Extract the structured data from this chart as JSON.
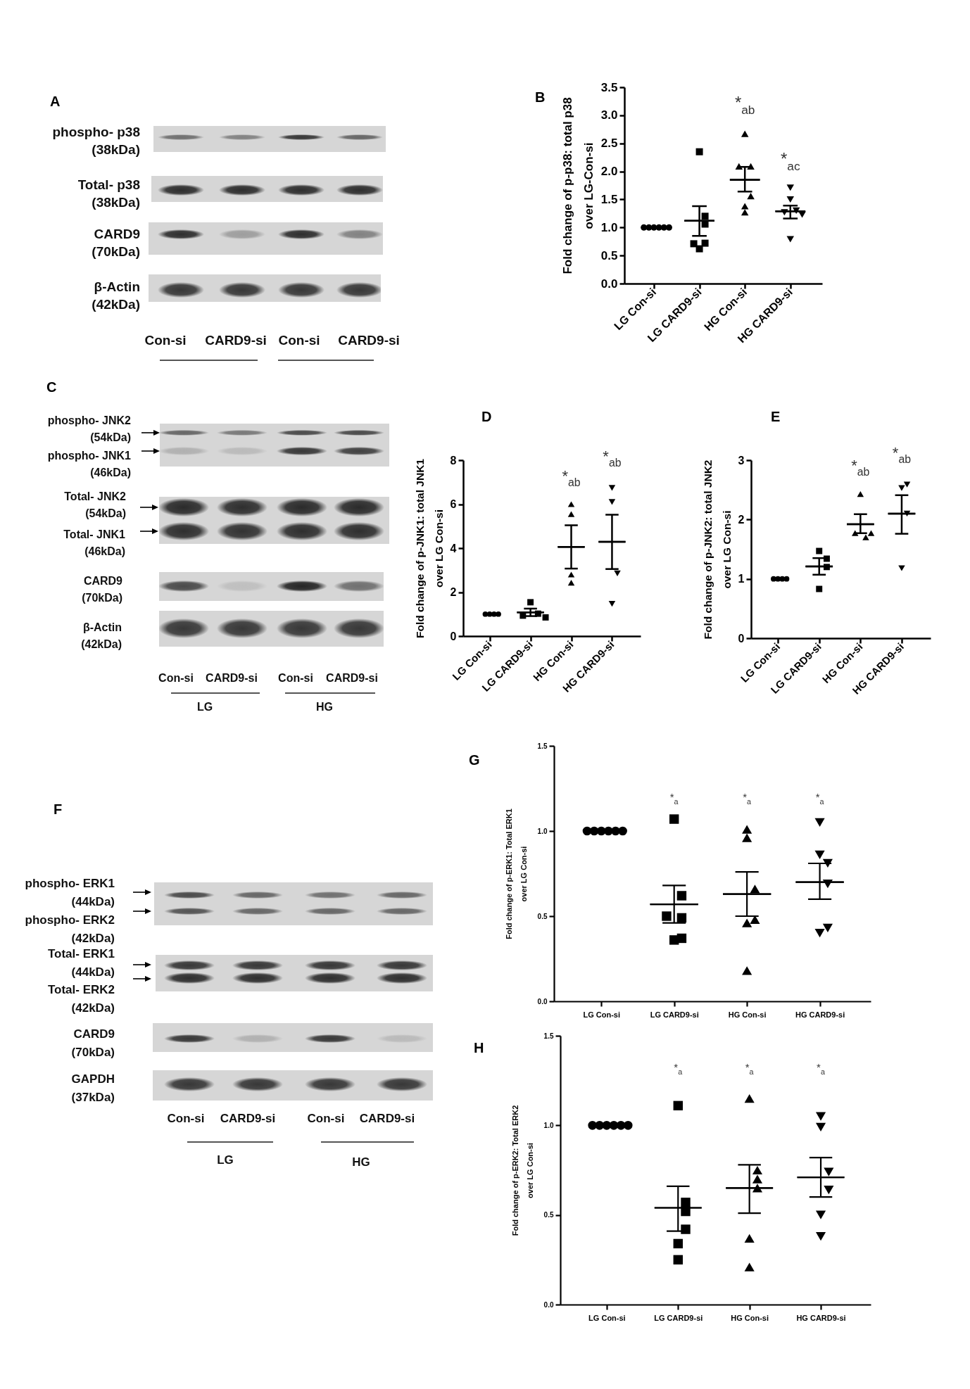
{
  "chart_data": [
    {
      "type": "other",
      "title": "A",
      "annotations": [
        "phospho- p38\n(38kDa)",
        "Total- p38\n(38kDa)",
        "CARD9\n(70kDa)",
        "β-Actin\n(42kDa)",
        "Con-si",
        "CARD9-si",
        "Con-si",
        "CARD9-si"
      ]
    },
    {
      "type": "scatter",
      "title": "B",
      "ylabel": "Fold change of p-p38: total p38\nover LG-Con-si",
      "categories": [
        "LG Con-si",
        "LG CARD9-si",
        "HG Con-si",
        "HG CARD9-si"
      ],
      "ylim": [
        0,
        3.5
      ],
      "yticks": [
        {
          "value": 0,
          "label": "0.0"
        },
        0.5,
        {
          "value": 1,
          "label": "1.0"
        },
        1.5,
        {
          "value": 2,
          "label": "2.0"
        },
        2.5,
        {
          "value": 3,
          "label": "3.0"
        },
        3.5
      ],
      "series": [
        {
          "marker": "circle",
          "color": "#000000",
          "x": [
            "LG Con-si",
            "LG Con-si",
            "LG Con-si",
            "LG Con-si",
            "LG Con-si",
            "LG Con-si"
          ],
          "values": [
            1,
            1,
            1,
            1,
            1,
            1
          ]
        },
        {
          "marker": "square",
          "color": "#000000",
          "x": [
            "LG CARD9-si",
            "LG CARD9-si",
            "LG CARD9-si",
            "LG CARD9-si",
            "LG CARD9-si",
            "LG CARD9-si"
          ],
          "values": [
            2.35,
            1.2,
            1.06,
            0.62,
            0.72,
            0.71
          ]
        },
        {
          "marker": "triangle",
          "color": "#000000",
          "x": [
            "HG Con-si",
            "HG Con-si",
            "HG Con-si",
            "HG Con-si",
            "HG Con-si",
            "HG Con-si"
          ],
          "values": [
            2.67,
            2.09,
            2.09,
            1.56,
            1.38,
            1.27
          ]
        },
        {
          "marker": "triangle-down",
          "color": "#000000",
          "x": [
            "HG CARD9-si",
            "HG CARD9-si",
            "HG CARD9-si",
            "HG CARD9-si",
            "HG CARD9-si",
            "HG CARD9-si"
          ],
          "values": [
            1.71,
            1.5,
            1.3,
            1.27,
            1.23,
            0.79
          ]
        },
        {
          "type": "box",
          "color": "#000000",
          "x": [
            "LG Con-si",
            "LG CARD9-si",
            "HG Con-si",
            "HG CARD9-si"
          ],
          "boxes": [
            null,
            {
              "low": 0.85,
              "q1": 1.12,
              "median": 1.12,
              "q3": 1.12,
              "high": 1.38
            },
            {
              "low": 1.64,
              "q1": 1.85,
              "median": 1.85,
              "q3": 1.85,
              "high": 2.08
            },
            {
              "low": 1.16,
              "q1": 1.29,
              "median": 1.29,
              "q3": 1.29,
              "high": 1.39
            }
          ]
        }
      ],
      "annotations": [
        "*$_{ab}$",
        "*$_{ac}$"
      ]
    },
    {
      "type": "other",
      "title": "C",
      "annotations": [
        "phospho- JNK2\n(54kDa)",
        "phospho- JNK1\n(46kDa)",
        "Total- JNK2\n(54kDa)",
        "Total- JNK1\n(46kDa)",
        "CARD9\n(70kDa)",
        "β-Actin\n(42kDa)",
        "Con-si",
        "CARD9-si",
        "Con-si",
        "CARD9-si",
        "LG",
        "HG"
      ]
    },
    {
      "type": "scatter",
      "title": "D",
      "ylabel": "Fold change of p-JNK1: total JNK1\nover LG Con-si",
      "categories": [
        "LG Con-si",
        "LG CARD9-si",
        "HG Con-si",
        "HG CARD9-si"
      ],
      "ylim": [
        0,
        8
      ],
      "yticks": [
        0,
        2,
        4,
        6,
        8
      ],
      "series": [
        {
          "marker": "circle",
          "color": "#000000",
          "x": [
            "LG Con-si",
            "LG Con-si",
            "LG Con-si",
            "LG Con-si"
          ],
          "values": [
            1,
            1,
            1,
            1
          ]
        },
        {
          "marker": "square",
          "color": "#000000",
          "x": [
            "LG CARD9-si",
            "LG CARD9-si",
            "LG CARD9-si",
            "LG CARD9-si"
          ],
          "values": [
            1.54,
            1.02,
            0.93,
            0.85
          ]
        },
        {
          "marker": "triangle",
          "color": "#000000",
          "x": [
            "HG Con-si",
            "HG Con-si",
            "HG Con-si",
            "HG Con-si"
          ],
          "values": [
            6.0,
            5.55,
            2.8,
            2.43
          ]
        },
        {
          "marker": "triangle-down",
          "color": "#000000",
          "x": [
            "HG CARD9-si",
            "HG CARD9-si",
            "HG CARD9-si",
            "HG CARD9-si"
          ],
          "values": [
            6.74,
            6.1,
            2.85,
            1.47
          ]
        },
        {
          "type": "box",
          "color": "#000000",
          "x": [
            "LG Con-si",
            "LG CARD9-si",
            "HG Con-si",
            "HG CARD9-si"
          ],
          "boxes": [
            null,
            {
              "low": 0.91,
              "q1": 1.08,
              "median": 1.08,
              "q3": 1.08,
              "high": 1.25
            },
            {
              "low": 3.07,
              "q1": 4.06,
              "median": 4.06,
              "q3": 4.06,
              "high": 5.04
            },
            {
              "low": 3.05,
              "q1": 4.29,
              "median": 4.29,
              "q3": 4.29,
              "high": 5.52
            }
          ]
        }
      ],
      "annotations": [
        "*$_{ab}$",
        "*$_{ab}$"
      ]
    },
    {
      "type": "scatter",
      "title": "E",
      "ylabel": "Fold change of p-JNK2: total JNK2\nover LG Con-si",
      "categories": [
        "LG Con-si",
        "LG CARD9-si",
        "HG Con-si",
        "HG CARD9-si"
      ],
      "ylim": [
        0,
        3
      ],
      "yticks": [
        0,
        1,
        2,
        3
      ],
      "series": [
        {
          "marker": "circle",
          "color": "#000000",
          "x": [
            "LG Con-si",
            "LG Con-si",
            "LG Con-si",
            "LG Con-si"
          ],
          "values": [
            1,
            1,
            1,
            1
          ]
        },
        {
          "marker": "square",
          "color": "#000000",
          "x": [
            "LG CARD9-si",
            "LG CARD9-si",
            "LG CARD9-si",
            "LG CARD9-si"
          ],
          "values": [
            1.34,
            1.47,
            1.2,
            0.83
          ]
        },
        {
          "marker": "triangle",
          "color": "#000000",
          "x": [
            "HG Con-si",
            "HG Con-si",
            "HG Con-si",
            "HG Con-si"
          ],
          "values": [
            2.43,
            1.7,
            1.77,
            1.77
          ]
        },
        {
          "marker": "triangle-down",
          "color": "#000000",
          "x": [
            "HG CARD9-si",
            "HG CARD9-si",
            "HG CARD9-si",
            "HG CARD9-si"
          ],
          "values": [
            2.53,
            2.59,
            2.1,
            1.18
          ]
        },
        {
          "type": "box",
          "color": "#000000",
          "x": [
            "LG Con-si",
            "LG CARD9-si",
            "HG Con-si",
            "HG CARD9-si"
          ],
          "boxes": [
            null,
            {
              "low": 1.07,
              "q1": 1.21,
              "median": 1.21,
              "q3": 1.21,
              "high": 1.35
            },
            {
              "low": 1.77,
              "q1": 1.92,
              "median": 1.92,
              "q3": 1.92,
              "high": 2.09
            },
            {
              "low": 1.76,
              "q1": 2.1,
              "median": 2.1,
              "q3": 2.1,
              "high": 2.41
            }
          ]
        }
      ],
      "annotations": [
        "*$_{ab}$",
        "*$_{ab}$"
      ]
    },
    {
      "type": "other",
      "title": "F",
      "annotations": [
        "phospho- ERK1\n(44kDa)",
        "phospho- ERK2\n(42kDa)",
        "Total- ERK1\n(44kDa)",
        "Total- ERK2\n(42kDa)",
        "CARD9\n(70kDa)",
        "GAPDH\n(37kDa)",
        "Con-si",
        "CARD9-si",
        "Con-si",
        "CARD9-si",
        "LG",
        "HG"
      ]
    },
    {
      "type": "scatter",
      "title": "G",
      "ylabel": "Fold change of p-ERK1: Total ERK1\nover LG Con-si",
      "categories": [
        "LG Con-si",
        "LG CARD9-si",
        "HG Con-si",
        "HG CARD9-si"
      ],
      "ylim": [
        0,
        1.5
      ],
      "yticks": [
        {
          "value": 0,
          "label": "0.0"
        },
        0.5,
        {
          "value": 1,
          "label": "1.0"
        },
        1.5
      ],
      "series": [
        {
          "marker": "circle",
          "color": "#000000",
          "x": [
            "LG Con-si",
            "LG Con-si",
            "LG Con-si",
            "LG Con-si",
            "LG Con-si",
            "LG Con-si"
          ],
          "values": [
            1,
            1,
            1,
            1,
            1,
            1
          ]
        },
        {
          "marker": "square",
          "color": "#000000",
          "x": [
            "LG CARD9-si",
            "LG CARD9-si",
            "LG CARD9-si",
            "LG CARD9-si",
            "LG CARD9-si",
            "LG CARD9-si"
          ],
          "values": [
            1.07,
            0.62,
            0.49,
            0.5,
            0.36,
            0.37
          ]
        },
        {
          "marker": "triangle",
          "color": "#000000",
          "x": [
            "HG Con-si",
            "HG Con-si",
            "HG Con-si",
            "HG Con-si",
            "HG Con-si",
            "HG Con-si"
          ],
          "values": [
            1.01,
            0.96,
            0.66,
            0.48,
            0.46,
            0.18
          ]
        },
        {
          "marker": "triangle-down",
          "color": "#000000",
          "x": [
            "HG CARD9-si",
            "HG CARD9-si",
            "HG CARD9-si",
            "HG CARD9-si",
            "HG CARD9-si",
            "HG CARD9-si"
          ],
          "values": [
            1.05,
            0.86,
            0.81,
            0.69,
            0.4,
            0.43
          ]
        },
        {
          "type": "box",
          "color": "#000000",
          "x": [
            "LG Con-si",
            "LG CARD9-si",
            "HG Con-si",
            "HG CARD9-si"
          ],
          "boxes": [
            null,
            {
              "low": 0.46,
              "q1": 0.57,
              "median": 0.57,
              "q3": 0.57,
              "high": 0.68
            },
            {
              "low": 0.5,
              "q1": 0.63,
              "median": 0.63,
              "q3": 0.63,
              "high": 0.76
            },
            {
              "low": 0.6,
              "q1": 0.7,
              "median": 0.7,
              "q3": 0.7,
              "high": 0.81
            }
          ]
        }
      ],
      "annotations": [
        "*$_{a}$",
        "*$_{a}$",
        "*$_{a}$"
      ]
    },
    {
      "type": "scatter",
      "title": "H",
      "ylabel": "Fold change of p-ERK2: Total ERK2\nover LG Con-si",
      "categories": [
        "LG Con-si",
        "LG CARD9-si",
        "HG Con-si",
        "HG CARD9-si"
      ],
      "ylim": [
        0,
        1.5
      ],
      "yticks": [
        {
          "value": 0,
          "label": "0.0"
        },
        0.5,
        {
          "value": 1,
          "label": "1.0"
        },
        1.5
      ],
      "series": [
        {
          "marker": "circle",
          "color": "#000000",
          "x": [
            "LG Con-si",
            "LG Con-si",
            "LG Con-si",
            "LG Con-si",
            "LG Con-si",
            "LG Con-si"
          ],
          "values": [
            1,
            1,
            1,
            1,
            1,
            1
          ]
        },
        {
          "marker": "square",
          "color": "#000000",
          "x": [
            "LG CARD9-si",
            "LG CARD9-si",
            "LG CARD9-si",
            "LG CARD9-si",
            "LG CARD9-si",
            "LG CARD9-si"
          ],
          "values": [
            1.11,
            0.57,
            0.52,
            0.42,
            0.34,
            0.25
          ]
        },
        {
          "marker": "triangle",
          "color": "#000000",
          "x": [
            "HG Con-si",
            "HG Con-si",
            "HG Con-si",
            "HG Con-si",
            "HG Con-si",
            "HG Con-si"
          ],
          "values": [
            1.15,
            0.75,
            0.7,
            0.65,
            0.37,
            0.21
          ]
        },
        {
          "marker": "triangle-down",
          "color": "#000000",
          "x": [
            "HG CARD9-si",
            "HG CARD9-si",
            "HG CARD9-si",
            "HG CARD9-si",
            "HG CARD9-si",
            "HG CARD9-si"
          ],
          "values": [
            1.05,
            0.99,
            0.74,
            0.64,
            0.5,
            0.38
          ]
        },
        {
          "type": "box",
          "color": "#000000",
          "x": [
            "LG Con-si",
            "LG CARD9-si",
            "HG Con-si",
            "HG CARD9-si"
          ],
          "boxes": [
            null,
            {
              "low": 0.41,
              "q1": 0.54,
              "median": 0.54,
              "q3": 0.54,
              "high": 0.66
            },
            {
              "low": 0.51,
              "q1": 0.65,
              "median": 0.65,
              "q3": 0.65,
              "high": 0.78
            },
            {
              "low": 0.6,
              "q1": 0.71,
              "median": 0.71,
              "q3": 0.71,
              "high": 0.82
            }
          ]
        }
      ],
      "annotations": [
        "*$_{a}$",
        "*$_{a}$",
        "*$_{a}$"
      ]
    }
  ]
}
